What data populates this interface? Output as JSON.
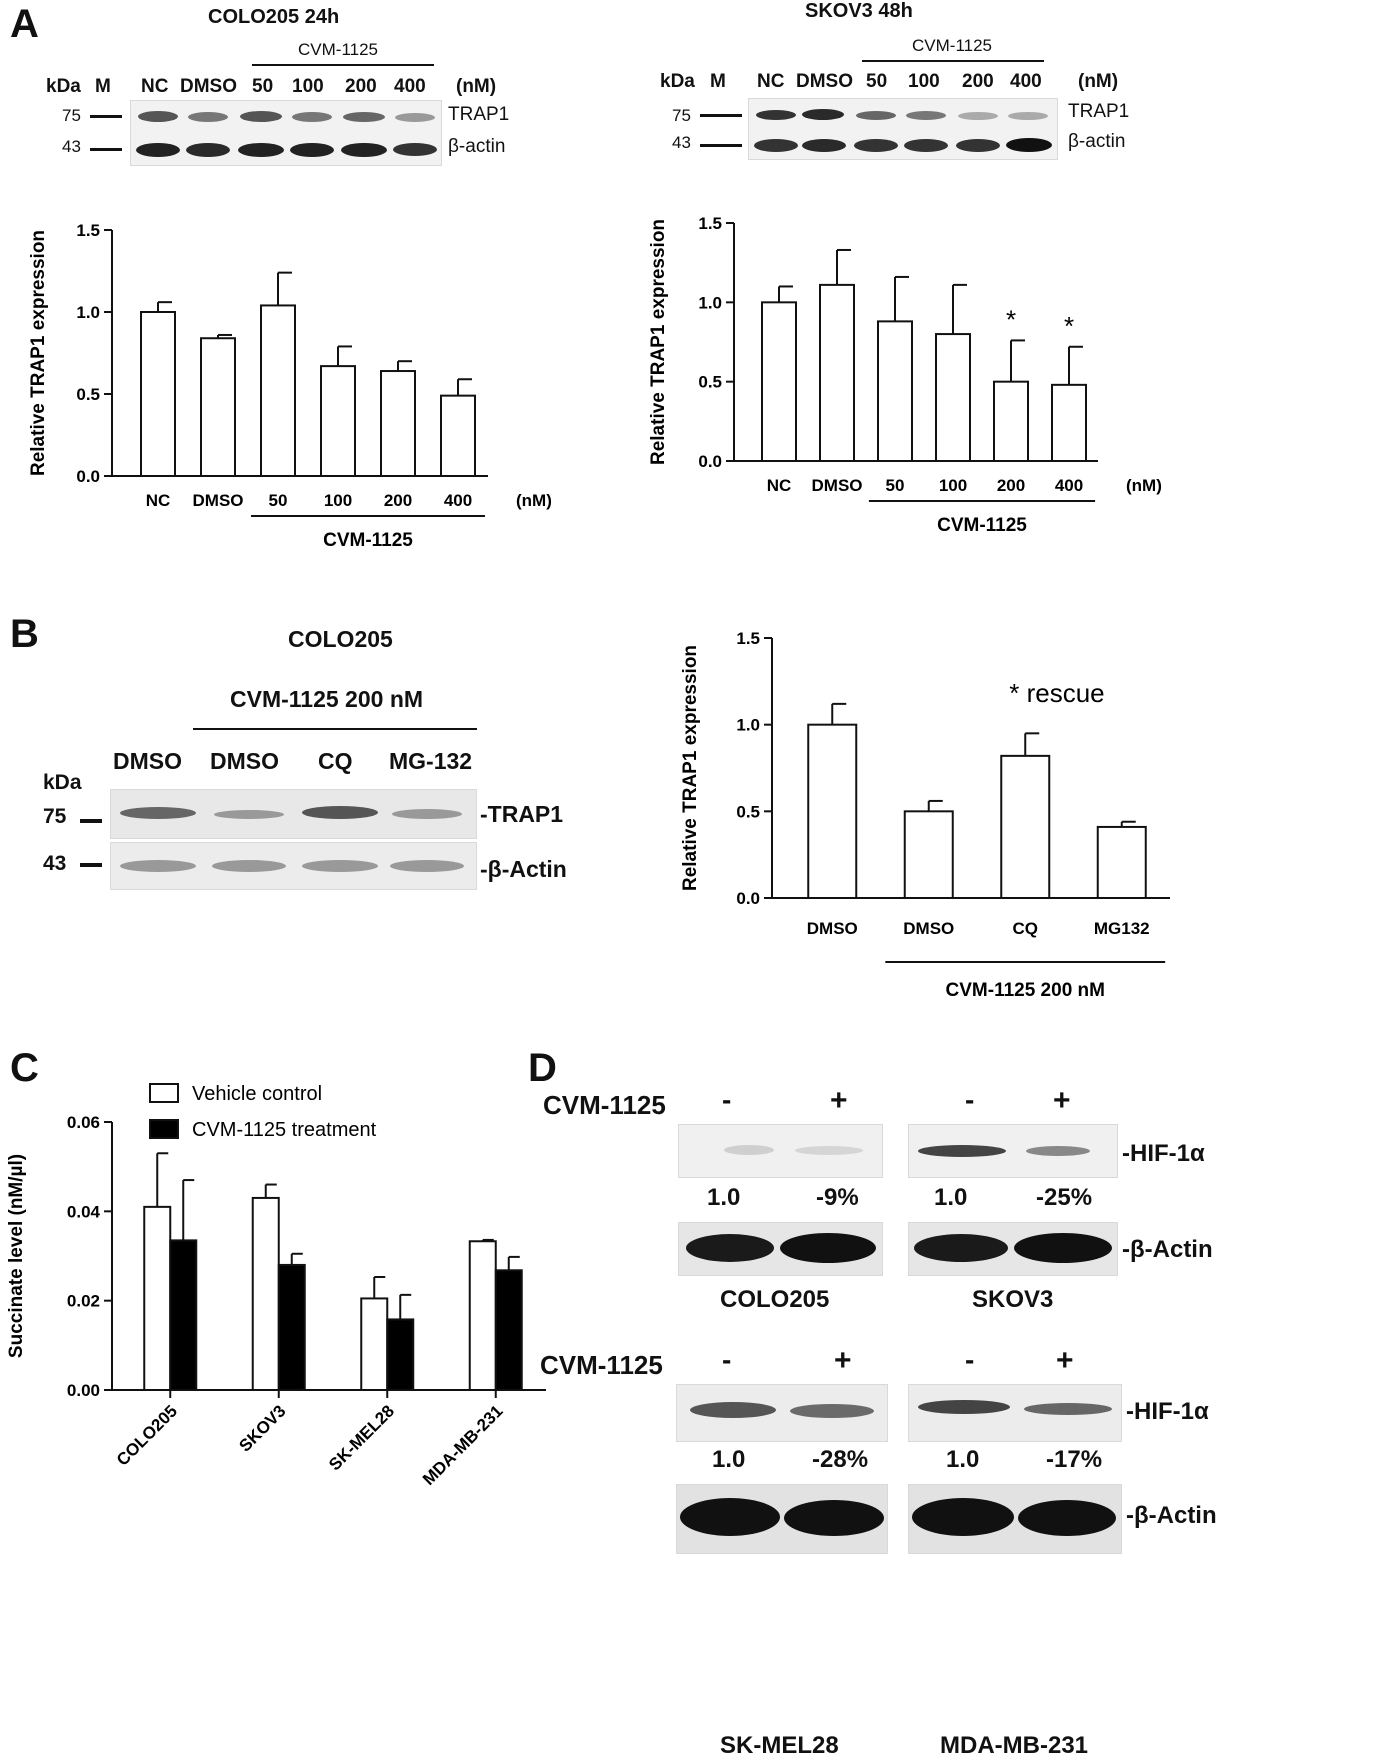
{
  "panels": {
    "A": {
      "letter": "A",
      "left_blot": {
        "title": "COLO205 24h",
        "treatment_label": "CVM-1125",
        "lane_labels": [
          "kDa",
          "M",
          "NC",
          "DMSO",
          "50",
          "100",
          "200",
          "400",
          "(nM)"
        ],
        "markers": [
          "75",
          "43"
        ],
        "proteins": [
          "TRAP1",
          "β-actin"
        ]
      },
      "right_blot": {
        "title": "SKOV3 48h",
        "treatment_label": "CVM-1125",
        "lane_labels": [
          "kDa",
          "M",
          "NC",
          "DMSO",
          "50",
          "100",
          "200",
          "400",
          "(nM)"
        ],
        "markers": [
          "75",
          "43"
        ],
        "proteins": [
          "TRAP1",
          "β-actin"
        ]
      }
    },
    "B": {
      "letter": "B",
      "blot": {
        "title": "COLO205",
        "treatment_label": "CVM-1125 200 nM",
        "lane_labels": [
          "DMSO",
          "DMSO",
          "CQ",
          "MG-132"
        ],
        "kda": "kDa",
        "markers": [
          "75",
          "43"
        ],
        "proteins": [
          "-TRAP1",
          "-β-Actin"
        ]
      }
    },
    "C": {
      "letter": "C"
    },
    "D": {
      "letter": "D",
      "treatment_label": "CVM-1125",
      "minus": "-",
      "plus": "+",
      "proteins": [
        "-HIF-1α",
        "-β-Actin"
      ],
      "cells": [
        {
          "name": "COLO205",
          "values": [
            "1.0",
            "-9%"
          ]
        },
        {
          "name": "SKOV3",
          "values": [
            "1.0",
            "-25%"
          ]
        },
        {
          "name": "SK-MEL28",
          "values": [
            "1.0",
            "-28%"
          ]
        },
        {
          "name": "MDA-MB-231",
          "values": [
            "1.0",
            "-17%"
          ]
        }
      ]
    }
  },
  "chart_data": [
    {
      "id": "A-left",
      "type": "bar",
      "categories": [
        "NC",
        "DMSO",
        "50",
        "100",
        "200",
        "400"
      ],
      "values": [
        1.0,
        0.84,
        1.04,
        0.67,
        0.64,
        0.49
      ],
      "errors": [
        0.06,
        0.02,
        0.2,
        0.12,
        0.06,
        0.1
      ],
      "ylabel": "Relative TRAP1 expression",
      "ylim": [
        0,
        1.5
      ],
      "yticks": [
        "0.0",
        "0.5",
        "1.0",
        "1.5"
      ],
      "unit_label": "(nM)",
      "group_label": "CVM-1125"
    },
    {
      "id": "A-right",
      "type": "bar",
      "categories": [
        "NC",
        "DMSO",
        "50",
        "100",
        "200",
        "400"
      ],
      "values": [
        1.0,
        1.11,
        0.88,
        0.8,
        0.5,
        0.48
      ],
      "errors": [
        0.1,
        0.22,
        0.28,
        0.31,
        0.26,
        0.24
      ],
      "significance": [
        "",
        "",
        "",
        "",
        "*",
        "*"
      ],
      "ylabel": "Relative TRAP1 expression",
      "ylim": [
        0,
        1.5
      ],
      "yticks": [
        "0.0",
        "0.5",
        "1.0",
        "1.5"
      ],
      "unit_label": "(nM)",
      "group_label": "CVM-1125"
    },
    {
      "id": "B",
      "type": "bar",
      "categories": [
        "DMSO",
        "DMSO",
        "CQ",
        "MG132"
      ],
      "values": [
        1.0,
        0.5,
        0.82,
        0.41
      ],
      "errors": [
        0.12,
        0.06,
        0.13,
        0.03
      ],
      "annotation": "* rescue",
      "ylabel": "Relative TRAP1 expression",
      "ylim": [
        0,
        1.5
      ],
      "yticks": [
        "0.0",
        "0.5",
        "1.0",
        "1.5"
      ],
      "group_label": "CVM-1125 200 nM"
    },
    {
      "id": "C",
      "type": "bar",
      "categories": [
        "COLO205",
        "SKOV3",
        "SK-MEL28",
        "MDA-MB-231"
      ],
      "series": [
        {
          "name": "Vehicle control",
          "values": [
            0.041,
            0.043,
            0.0205,
            0.0333
          ],
          "errors": [
            0.012,
            0.003,
            0.0048,
            0.0003
          ],
          "color": "#ffffff"
        },
        {
          "name": "CVM-1125 treatment",
          "values": [
            0.0335,
            0.028,
            0.0158,
            0.0268
          ],
          "errors": [
            0.0135,
            0.0025,
            0.0055,
            0.003
          ],
          "color": "#000000"
        }
      ],
      "ylabel": "Succinate level (nM/µl)",
      "ylim": [
        0,
        0.06
      ],
      "yticks": [
        "0.00",
        "0.02",
        "0.04",
        "0.06"
      ],
      "legend": "top"
    }
  ]
}
